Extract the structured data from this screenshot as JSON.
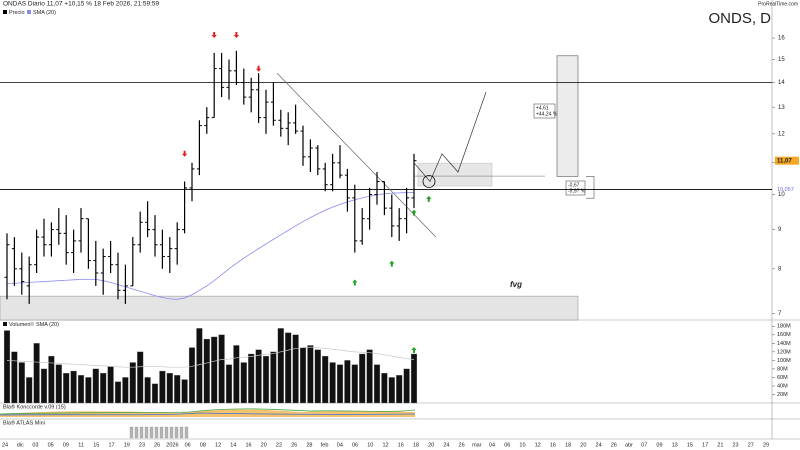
{
  "chart_data": {
    "type": "ohlc",
    "header": "ONDAS Diario 11,07 +10,15 % 18 Feb 2026, 21:59:59",
    "title": "ONDS, D",
    "watermark": "ProRealTime.com",
    "price": {
      "legend": [
        "Precio",
        "SMA (20)"
      ],
      "log_scale": true,
      "ylim": [
        6.86,
        17.2
      ],
      "yticks": [
        7,
        8,
        9,
        10,
        11,
        12,
        13,
        14,
        15,
        16
      ],
      "color": "#000000",
      "open": [
        7.8,
        8.5,
        8.0,
        7.6,
        8.1,
        8.8,
        8.6,
        9.0,
        8.9,
        8.4,
        8.7,
        9.3,
        8.2,
        7.9,
        8.3,
        8.1,
        7.5,
        7.6,
        8.6,
        9.2,
        9.0,
        8.6,
        8.3,
        8.5,
        9.0,
        10.2,
        10.8,
        12.3,
        12.6,
        14.6,
        13.8,
        14.5,
        14.0,
        13.4,
        13.7,
        12.6,
        13.2,
        12.5,
        12.2,
        12.4,
        12.1,
        11.2,
        11.5,
        10.8,
        10.3,
        11.0,
        10.6,
        9.9,
        8.7,
        9.3,
        10.0,
        10.4,
        9.6,
        9.1,
        9.3,
        9.9
      ],
      "high": [
        8.9,
        8.8,
        8.4,
        8.3,
        9.0,
        9.3,
        9.2,
        9.6,
        9.4,
        9.0,
        9.6,
        9.3,
        8.7,
        8.5,
        8.7,
        8.4,
        8.1,
        8.8,
        9.5,
        9.8,
        9.4,
        9.0,
        8.8,
        9.2,
        10.4,
        11.0,
        12.5,
        13.0,
        15.3,
        15.3,
        15.0,
        15.4,
        14.6,
        14.2,
        14.4,
        13.7,
        14.0,
        12.9,
        12.8,
        13.1,
        12.3,
        11.8,
        11.6,
        11.0,
        11.3,
        11.6,
        10.8,
        10.3,
        9.6,
        10.2,
        10.7,
        10.4,
        10.0,
        9.6,
        10.2,
        11.3
      ],
      "low": [
        7.3,
        7.6,
        7.4,
        7.2,
        7.9,
        8.3,
        8.3,
        8.6,
        8.1,
        7.9,
        8.4,
        8.0,
        7.6,
        7.4,
        7.9,
        7.3,
        7.2,
        7.6,
        8.4,
        8.8,
        8.3,
        8.0,
        7.9,
        8.1,
        8.9,
        9.8,
        10.6,
        12.0,
        12.6,
        13.4,
        13.3,
        13.9,
        13.1,
        12.8,
        12.4,
        12.0,
        12.3,
        11.9,
        11.6,
        12.0,
        10.9,
        10.7,
        10.6,
        10.1,
        10.1,
        10.5,
        9.5,
        8.4,
        8.6,
        9.0,
        9.7,
        9.4,
        8.8,
        8.7,
        8.9,
        9.6
      ],
      "close": [
        8.6,
        8.0,
        7.7,
        8.1,
        8.8,
        8.6,
        9.0,
        8.9,
        8.4,
        8.7,
        9.3,
        8.2,
        7.9,
        8.3,
        8.1,
        7.5,
        7.6,
        8.6,
        9.2,
        9.0,
        8.6,
        8.3,
        8.5,
        9.0,
        10.2,
        10.8,
        12.3,
        12.6,
        14.6,
        13.8,
        14.5,
        14.0,
        13.4,
        13.7,
        12.6,
        13.2,
        12.5,
        12.2,
        12.4,
        12.1,
        11.2,
        11.5,
        10.8,
        10.3,
        11.0,
        10.6,
        9.9,
        8.7,
        9.3,
        10.0,
        10.4,
        9.6,
        9.1,
        9.3,
        9.9,
        11.07
      ],
      "sma": {
        "color": "#8a8af0",
        "values": [
          7.65,
          7.66,
          7.67,
          7.68,
          7.69,
          7.7,
          7.71,
          7.72,
          7.73,
          7.74,
          7.75,
          7.75,
          7.75,
          7.72,
          7.68,
          7.63,
          7.58,
          7.53,
          7.48,
          7.43,
          7.38,
          7.34,
          7.31,
          7.3,
          7.33,
          7.4,
          7.5,
          7.6,
          7.72,
          7.86,
          8.0,
          8.13,
          8.26,
          8.38,
          8.5,
          8.62,
          8.74,
          8.86,
          8.98,
          9.1,
          9.22,
          9.33,
          9.44,
          9.54,
          9.63,
          9.71,
          9.78,
          9.84,
          9.9,
          9.95,
          9.99,
          10.02,
          10.04,
          10.05,
          10.06,
          10.057
        ]
      },
      "last_price_tag": {
        "value": 11.07,
        "label": "11,07"
      },
      "sma_tag": {
        "value": 10.057,
        "label": "10,057"
      },
      "hlines": [
        14,
        10.15
      ],
      "trendline": [
        14.4,
        8.8
      ],
      "projection": [
        11.0,
        10.4,
        11.3,
        10.7,
        13.6
      ],
      "range_box": [
        10.26,
        10.99
      ],
      "target_line": 10.57,
      "fvg": {
        "label": "fvg",
        "range": [
          6.86,
          7.37
        ]
      },
      "measures": [
        {
          "range": [
            10.56,
            15.17
          ],
          "change": "+4,61",
          "percent": "+44,24 %"
        },
        {
          "range": [
            9.89,
            10.56
          ],
          "change": "-0,67",
          "percent": "-5,97 %"
        }
      ],
      "sell_signals": [
        {
          "bar": 24,
          "price": 11.27
        },
        {
          "bar": 28,
          "price": 16.1
        },
        {
          "bar": 31,
          "price": 16.1
        },
        {
          "bar": 34,
          "price": 14.55
        }
      ],
      "buy_signals": [
        {
          "bar": 47,
          "price": 7.7
        },
        {
          "bar": 52,
          "price": 8.15
        },
        {
          "bar": 55,
          "price": 9.5
        },
        {
          "bar": 57,
          "price": 9.9
        }
      ]
    },
    "volume": {
      "legend": [
        "Volumen",
        "SMA (20)"
      ],
      "ylim": [
        0,
        190
      ],
      "yticks": [
        {
          "value": 20,
          "label": "20M"
        },
        {
          "value": 40,
          "label": "40M"
        },
        {
          "value": 60,
          "label": "60M"
        },
        {
          "value": 80,
          "label": "80M"
        },
        {
          "value": 100,
          "label": "100M"
        },
        {
          "value": 120,
          "label": "120M"
        },
        {
          "value": 140,
          "label": "140M"
        },
        {
          "value": 160,
          "label": "160M"
        },
        {
          "value": 180,
          "label": "180M"
        }
      ],
      "color": "#111111",
      "values": [
        170,
        120,
        95,
        60,
        140,
        80,
        110,
        90,
        70,
        75,
        65,
        60,
        80,
        70,
        85,
        50,
        60,
        95,
        120,
        60,
        45,
        75,
        70,
        65,
        55,
        130,
        175,
        150,
        155,
        160,
        90,
        135,
        95,
        115,
        125,
        110,
        120,
        175,
        165,
        160,
        130,
        135,
        125,
        110,
        95,
        90,
        100,
        90,
        115,
        125,
        90,
        70,
        60,
        65,
        80,
        115
      ],
      "sma": {
        "color": "#c8c8c8",
        "values": [
          100,
          99,
          98,
          97,
          96,
          95,
          94,
          93,
          92,
          91,
          90,
          89,
          88,
          87,
          86,
          85,
          84,
          84,
          85,
          86,
          86,
          85,
          84,
          84,
          84,
          86,
          90,
          94,
          98,
          102,
          103,
          106,
          107,
          109,
          112,
          114,
          116,
          120,
          124,
          128,
          130,
          131,
          130,
          128,
          126,
          124,
          122,
          120,
          119,
          118,
          116,
          113,
          110,
          107,
          104,
          102
        ]
      },
      "buy_signal_bars": [
        55
      ]
    },
    "indicators": [
      {
        "label": "Bla® Konccorde v.09 (15)"
      },
      {
        "label": "Bla® ATLAS Mini"
      }
    ],
    "date_labels": [
      "24",
      "dic",
      "03",
      "05",
      "09",
      "11",
      "15",
      "17",
      "19",
      "23",
      "26",
      "2026",
      "06",
      "08",
      "12",
      "14",
      "16",
      "20",
      "22",
      "26",
      "28",
      "feb",
      "04",
      "06",
      "10",
      "12",
      "16",
      "18",
      "20",
      "24",
      "26",
      "mar",
      "04",
      "06",
      "10",
      "12",
      "16",
      "18",
      "20",
      "24",
      "26",
      "abr",
      "07",
      "09",
      "13",
      "15",
      "17",
      "21",
      "23",
      "27",
      "29"
    ]
  }
}
